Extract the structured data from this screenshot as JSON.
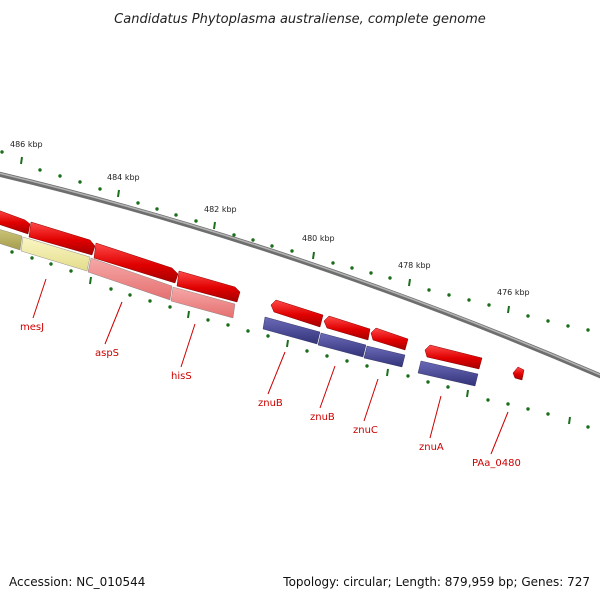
{
  "title": "Candidatus Phytoplasma australiense, complete genome",
  "footer": {
    "accession": "Accession: NC_010544",
    "stats": "Topology: circular; Length: 879,959 bp; Genes: 727"
  },
  "kbp_labels": [
    "486 kbp",
    "484 kbp",
    "482 kbp",
    "480 kbp",
    "478 kbp",
    "476 kbp"
  ],
  "gene_labels": [
    "mesJ",
    "aspS",
    "hisS",
    "znuB",
    "znuB",
    "znuC",
    "znuA",
    "PAa_0480"
  ],
  "colors": {
    "gene_red": "#e00000",
    "cog_yellow": "#f2eda0",
    "cog_olive": "#b8b060",
    "cog_pink": "#f08a8a",
    "cog_purple": "#4a4a96",
    "backbone": "#888888",
    "ticks": "#1b6e1b",
    "label_red": "#cc0000"
  }
}
